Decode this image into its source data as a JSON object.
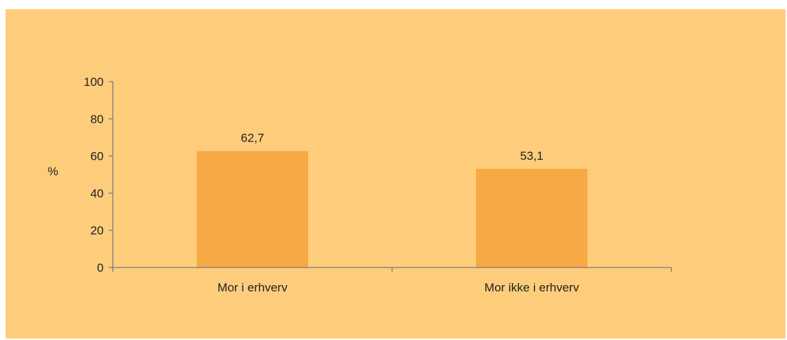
{
  "chart_data": {
    "type": "bar",
    "categories": [
      "Mor i erhverv",
      "Mor ikke i erhverv"
    ],
    "values": [
      62.7,
      53.1
    ],
    "data_labels": [
      "62,7",
      "53,1"
    ],
    "title": "",
    "xlabel": "",
    "ylabel": "%",
    "ylim": [
      0,
      100
    ],
    "yticks": [
      0,
      20,
      40,
      60,
      80,
      100
    ],
    "grid": false,
    "legend": "none"
  },
  "colors": {
    "panel_background": "#fecd7c",
    "bar": "#f6a944",
    "axis": "#7a7a7a",
    "text": "#222222"
  }
}
